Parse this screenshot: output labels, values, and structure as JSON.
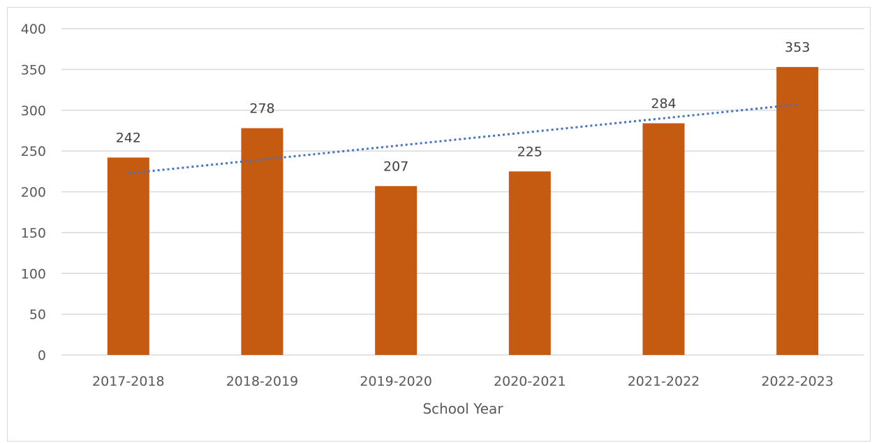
{
  "chart_data": {
    "type": "bar",
    "title": "",
    "xlabel": "School Year",
    "ylabel": "",
    "categories": [
      "2017-2018",
      "2018-2019",
      "2019-2020",
      "2020-2021",
      "2021-2022",
      "2022-2023"
    ],
    "series": [
      {
        "values": [
          242,
          278,
          207,
          225,
          284,
          353
        ],
        "color": "#c55a11"
      }
    ],
    "data_labels": [
      "242",
      "278",
      "207",
      "225",
      "284",
      "353"
    ],
    "yticks": [
      0,
      50,
      100,
      150,
      200,
      250,
      300,
      350,
      400
    ],
    "ylim": [
      0,
      400
    ],
    "grid": true,
    "gridline_color": "#d9d9d9",
    "legend": "none",
    "trendline": {
      "type": "linear",
      "style": "dotted",
      "color": "#4472c4"
    }
  }
}
